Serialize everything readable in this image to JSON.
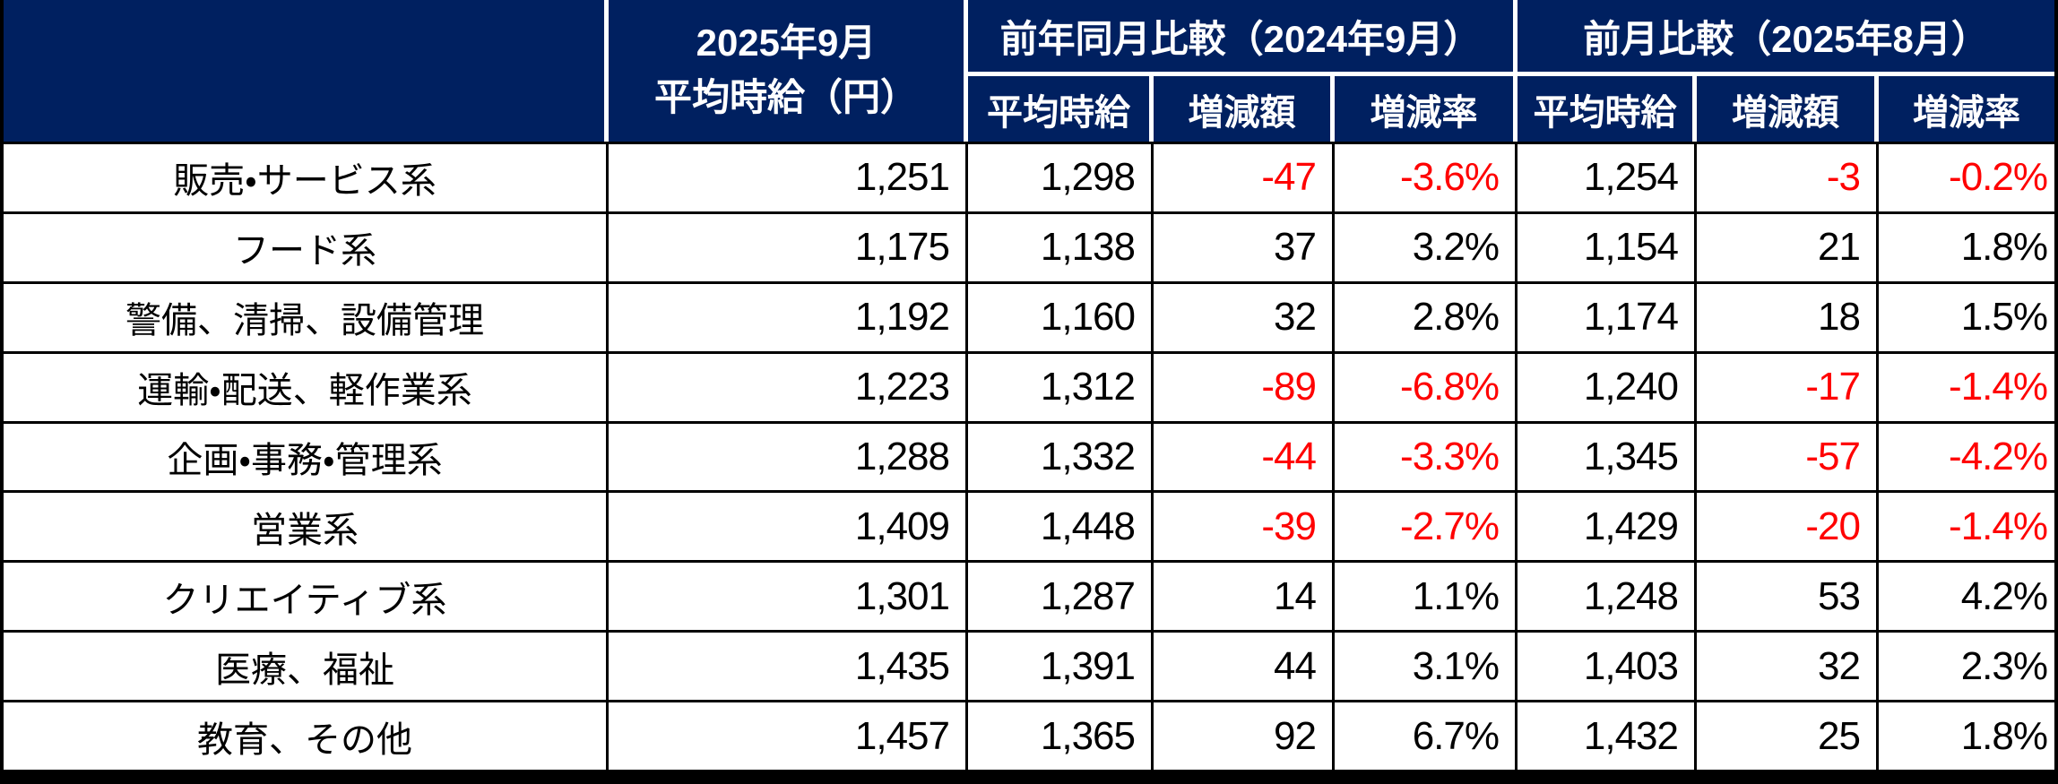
{
  "colors": {
    "header_bg": "#002060",
    "header_text": "#ffffff",
    "body_text": "#000000",
    "negative_text": "#ff0000",
    "grid_line": "#000000",
    "header_separator": "#ffffff"
  },
  "header": {
    "corner_label": "",
    "month_col_line1": "2025年9月",
    "month_col_line2": "平均時給（円）",
    "group_yoy_title": "前年同月比較（2024年9月）",
    "group_mom_title": "前月比較（2025年8月）",
    "sub_labels": [
      "平均時給",
      "増減額",
      "増減率"
    ]
  },
  "rows": [
    {
      "category": "販売・サービス系",
      "values": [
        "1,251",
        "1,298",
        "-47",
        "-3.6%",
        "1,254",
        "-3",
        "-0.2%"
      ]
    },
    {
      "category": "フード系",
      "values": [
        "1,175",
        "1,138",
        "37",
        "3.2%",
        "1,154",
        "21",
        "1.8%"
      ]
    },
    {
      "category": "警備、清掃、設備管理",
      "values": [
        "1,192",
        "1,160",
        "32",
        "2.8%",
        "1,174",
        "18",
        "1.5%"
      ]
    },
    {
      "category": "運輸・配送、軽作業系",
      "values": [
        "1,223",
        "1,312",
        "-89",
        "-6.8%",
        "1,240",
        "-17",
        "-1.4%"
      ]
    },
    {
      "category": "企画・事務・管理系",
      "values": [
        "1,288",
        "1,332",
        "-44",
        "-3.3%",
        "1,345",
        "-57",
        "-4.2%"
      ]
    },
    {
      "category": "営業系",
      "values": [
        "1,409",
        "1,448",
        "-39",
        "-2.7%",
        "1,429",
        "-20",
        "-1.4%"
      ]
    },
    {
      "category": "クリエイティブ系",
      "values": [
        "1,301",
        "1,287",
        "14",
        "1.1%",
        "1,248",
        "53",
        "4.2%"
      ]
    },
    {
      "category": "医療、福祉",
      "values": [
        "1,435",
        "1,391",
        "44",
        "3.1%",
        "1,403",
        "32",
        "2.3%"
      ]
    },
    {
      "category": "教育、その他",
      "values": [
        "1,457",
        "1,365",
        "92",
        "6.7%",
        "1,432",
        "25",
        "1.8%"
      ]
    }
  ],
  "chart_data": {
    "type": "table",
    "title": "",
    "column_headers": [
      "",
      "2025年9月 平均時給（円）",
      "前年同月比較（2024年9月） 平均時給",
      "前年同月比較（2024年9月） 増減額",
      "前年同月比較（2024年9月） 増減率",
      "前月比較（2025年8月） 平均時給",
      "前月比較（2025年8月） 増減額",
      "前月比較（2025年8月） 増減率"
    ],
    "categories": [
      "販売・サービス系",
      "フード系",
      "警備、清掃、設備管理",
      "運輸・配送、軽作業系",
      "企画・事務・管理系",
      "営業系",
      "クリエイティブ系",
      "医療、福祉",
      "教育、その他"
    ],
    "series": [
      {
        "name": "2025年9月平均時給（円）",
        "values": [
          1251,
          1175,
          1192,
          1223,
          1288,
          1409,
          1301,
          1435,
          1457
        ]
      },
      {
        "name": "前年同月（2024年9月）平均時給",
        "values": [
          1298,
          1138,
          1160,
          1312,
          1332,
          1448,
          1287,
          1391,
          1365
        ]
      },
      {
        "name": "前年同月比 増減額",
        "values": [
          -47,
          37,
          32,
          -89,
          -44,
          -39,
          14,
          44,
          92
        ]
      },
      {
        "name": "前年同月比 増減率(%)",
        "values": [
          -3.6,
          3.2,
          2.8,
          -6.8,
          -3.3,
          -2.7,
          1.1,
          3.1,
          6.7
        ]
      },
      {
        "name": "前月（2025年8月）平均時給",
        "values": [
          1254,
          1154,
          1174,
          1240,
          1345,
          1429,
          1248,
          1403,
          1432
        ]
      },
      {
        "name": "前月比 増減額",
        "values": [
          -3,
          21,
          18,
          -17,
          -57,
          -20,
          53,
          32,
          25
        ]
      },
      {
        "name": "前月比 増減率(%)",
        "values": [
          -0.2,
          1.8,
          1.5,
          -1.4,
          -4.2,
          -1.4,
          4.2,
          2.3,
          1.8
        ]
      }
    ],
    "layout": {
      "negative_values_shown_in_red": true,
      "grid": true,
      "header_background": "#002060"
    }
  }
}
